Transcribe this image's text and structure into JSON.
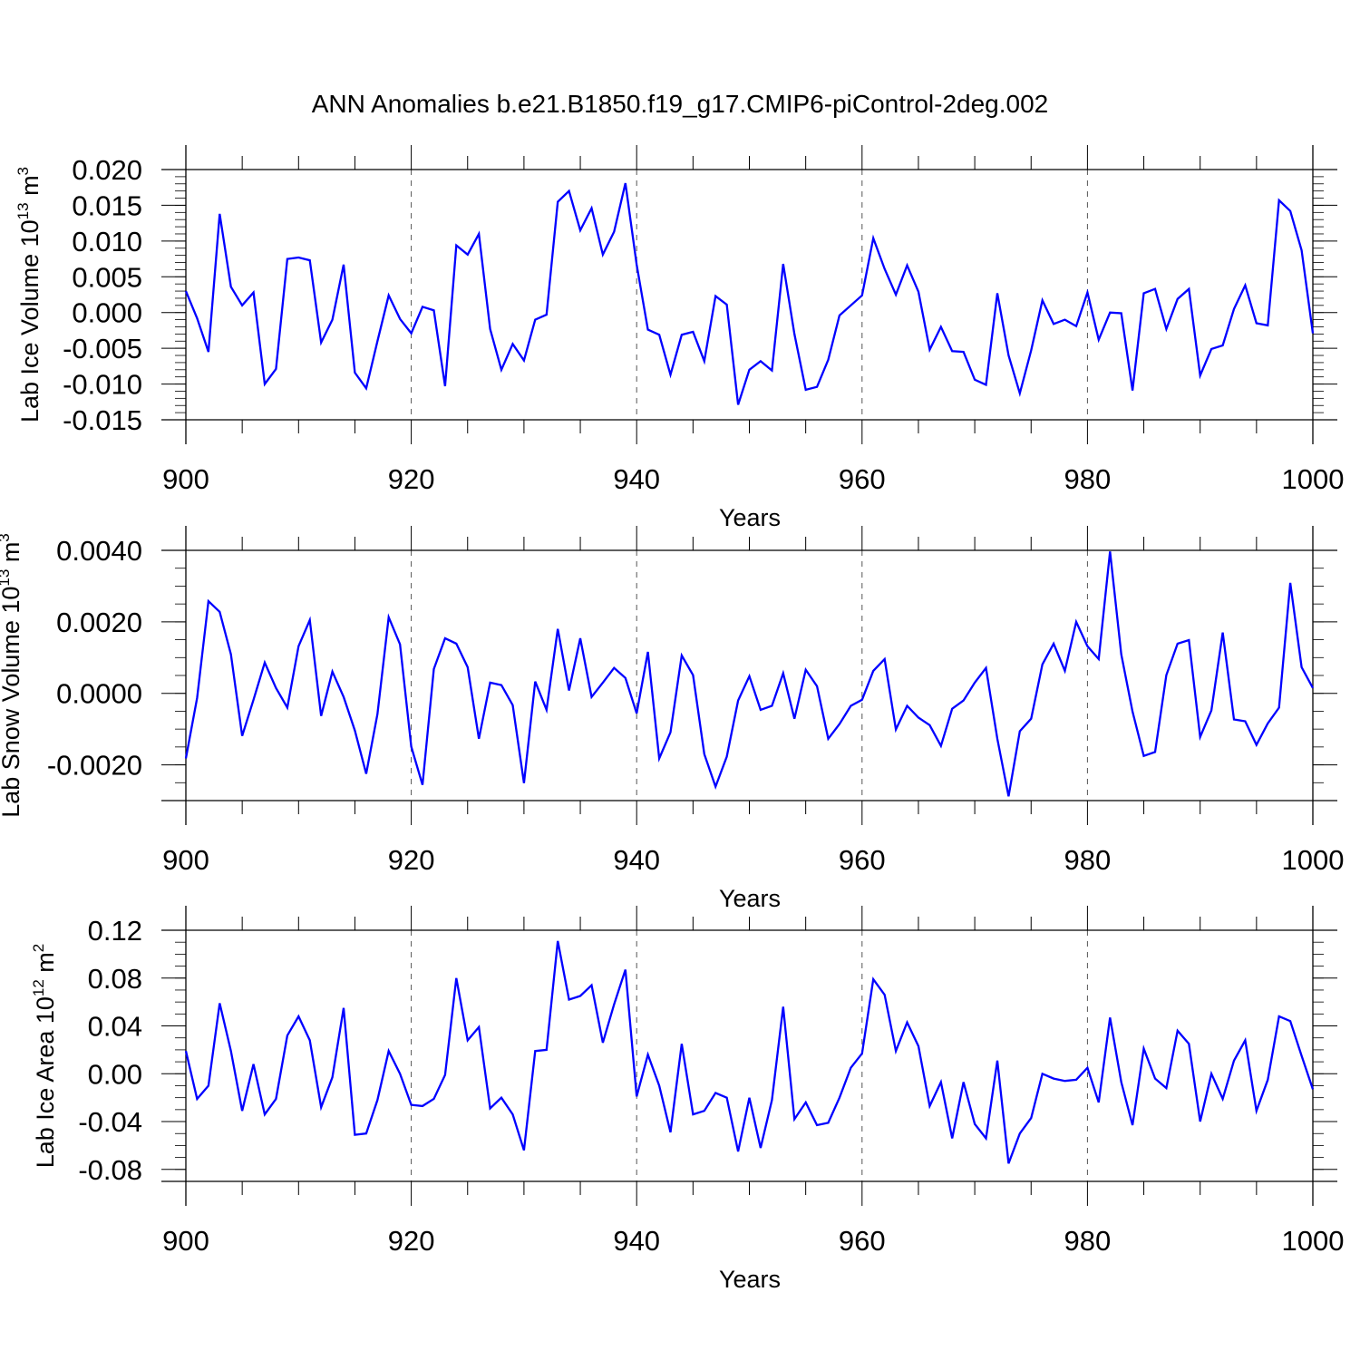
{
  "title": "ANN Anomalies b.e21.B1850.f19_g17.CMIP6-piControl-2deg.002",
  "colors": {
    "line": "#0000ff",
    "axis": "#000000",
    "grid": "#555555"
  },
  "chart_data": [
    {
      "type": "line",
      "xlabel": "Years",
      "ylabel": [
        {
          "t": "Lab Ice Volume 10"
        },
        {
          "t": "13",
          "sup": true
        },
        {
          "t": " m"
        },
        {
          "t": "3",
          "sup": true
        }
      ],
      "xlim": [
        900,
        1000
      ],
      "ylim": [
        -0.015,
        0.02
      ],
      "xticks": [
        "900",
        "920",
        "940",
        "960",
        "980",
        "1000"
      ],
      "yticks": [
        {
          "v": 0.02,
          "label": "0.020"
        },
        {
          "v": 0.015,
          "label": "0.015"
        },
        {
          "v": 0.01,
          "label": "0.010"
        },
        {
          "v": 0.005,
          "label": "0.005"
        },
        {
          "v": 0.0,
          "label": "0.000"
        },
        {
          "v": -0.005,
          "label": "-0.005"
        },
        {
          "v": -0.01,
          "label": "-0.010"
        },
        {
          "v": -0.015,
          "label": "-0.015"
        }
      ],
      "yminor_step": 0.001,
      "grid": "dashed vertical at 920, 940, 960, 980",
      "x_start": 900,
      "values": [
        0.003,
        -0.0008,
        -0.0055,
        0.0138,
        0.0036,
        0.001,
        0.0028,
        -0.01,
        -0.0079,
        0.0075,
        0.0077,
        0.0073,
        -0.0042,
        -0.001,
        0.0067,
        -0.0084,
        -0.0106,
        -0.004,
        0.0024,
        -0.0009,
        -0.0029,
        0.0008,
        0.0003,
        -0.0103,
        0.0094,
        0.0081,
        0.011,
        -0.0023,
        -0.008,
        -0.0044,
        -0.0067,
        -0.001,
        -0.0003,
        0.0155,
        0.017,
        0.0115,
        0.0146,
        0.0081,
        0.0113,
        0.0181,
        0.0067,
        -0.0024,
        -0.0031,
        -0.0087,
        -0.0031,
        -0.0027,
        -0.0068,
        0.0023,
        0.0011,
        -0.0129,
        -0.008,
        -0.0068,
        -0.0081,
        0.0068,
        -0.003,
        -0.0108,
        -0.0104,
        -0.0066,
        -0.0004,
        0.001,
        0.0024,
        0.0104,
        0.0061,
        0.0025,
        0.0066,
        0.0029,
        -0.0052,
        -0.002,
        -0.0054,
        -0.0055,
        -0.0094,
        -0.0101,
        0.0027,
        -0.006,
        -0.0113,
        -0.0053,
        0.0017,
        -0.0016,
        -0.001,
        -0.0019,
        0.0028,
        -0.0038,
        0.0,
        -0.0001,
        -0.0109,
        0.0027,
        0.0033,
        -0.0023,
        0.0019,
        0.0033,
        -0.0088,
        -0.0051,
        -0.0046,
        0.0005,
        0.0038,
        -0.0015,
        -0.0018,
        0.0157,
        0.0142,
        0.0087,
        -0.0029
      ]
    },
    {
      "type": "line",
      "xlabel": "Years",
      "ylabel": [
        {
          "t": "Lab Snow Volume 10"
        },
        {
          "t": "13",
          "sup": true
        },
        {
          "t": " m"
        },
        {
          "t": "3",
          "sup": true
        }
      ],
      "xlim": [
        900,
        1000
      ],
      "ylim": [
        -0.003,
        0.004
      ],
      "xticks": [
        "900",
        "920",
        "940",
        "960",
        "980",
        "1000"
      ],
      "yticks": [
        {
          "v": 0.004,
          "label": "0.0040"
        },
        {
          "v": 0.002,
          "label": "0.0020"
        },
        {
          "v": 0.0,
          "label": "0.0000"
        },
        {
          "v": -0.002,
          "label": "-0.0020"
        }
      ],
      "yminor_step": 0.0005,
      "grid": "dashed vertical at 920, 940, 960, 980",
      "x_start": 900,
      "values": [
        -0.00182,
        -0.00013,
        0.00258,
        0.00228,
        0.00109,
        -0.00119,
        -0.00018,
        0.00086,
        0.00015,
        -0.0004,
        0.00132,
        0.00205,
        -0.00063,
        0.00061,
        -0.0001,
        -0.00104,
        -0.00225,
        -0.00058,
        0.00213,
        0.00137,
        -0.00149,
        -0.00256,
        0.00068,
        0.00154,
        0.00139,
        0.00073,
        -0.00127,
        0.0003,
        0.00023,
        -0.00033,
        -0.00251,
        0.00033,
        -0.00046,
        0.0018,
        8e-05,
        0.00154,
        -0.0001,
        0.0003,
        0.00071,
        0.00043,
        -0.00056,
        0.00116,
        -0.00182,
        -0.00109,
        0.00106,
        0.00051,
        -0.0017,
        -0.00261,
        -0.00177,
        -0.0002,
        0.00048,
        -0.00046,
        -0.00035,
        0.00056,
        -0.00071,
        0.00066,
        0.0002,
        -0.00127,
        -0.00086,
        -0.00035,
        -0.00018,
        0.00063,
        0.00096,
        -0.00101,
        -0.00035,
        -0.00068,
        -0.00089,
        -0.00147,
        -0.00043,
        -0.0002,
        0.0003,
        0.00071,
        -0.00127,
        -0.00288,
        -0.00106,
        -0.00071,
        0.00081,
        0.00139,
        0.00063,
        0.002,
        0.00132,
        0.00096,
        0.00397,
        0.00109,
        -0.00051,
        -0.00175,
        -0.00164,
        0.00051,
        0.00139,
        0.00149,
        -0.00122,
        -0.00048,
        0.0017,
        -0.00073,
        -0.00078,
        -0.00144,
        -0.00084,
        -0.0004,
        0.00309,
        0.00073,
        0.00015
      ]
    },
    {
      "type": "line",
      "xlabel": "Years",
      "ylabel": [
        {
          "t": "Lab Ice Area 10"
        },
        {
          "t": "12",
          "sup": true
        },
        {
          "t": " m"
        },
        {
          "t": "2",
          "sup": true
        }
      ],
      "xlim": [
        900,
        1000
      ],
      "ylim": [
        -0.09,
        0.12
      ],
      "xticks": [
        "900",
        "920",
        "940",
        "960",
        "980",
        "1000"
      ],
      "yticks": [
        {
          "v": 0.12,
          "label": "0.12"
        },
        {
          "v": 0.08,
          "label": "0.08"
        },
        {
          "v": 0.04,
          "label": "0.04"
        },
        {
          "v": 0.0,
          "label": "0.00"
        },
        {
          "v": -0.04,
          "label": "-0.04"
        },
        {
          "v": -0.08,
          "label": "-0.08"
        }
      ],
      "yminor_step": 0.01,
      "grid": "dashed vertical at 920, 940, 960, 980",
      "x_start": 900,
      "values": [
        0.019,
        -0.021,
        -0.01,
        0.059,
        0.019,
        -0.031,
        0.008,
        -0.034,
        -0.021,
        0.032,
        0.048,
        0.028,
        -0.028,
        -0.003,
        0.055,
        -0.051,
        -0.05,
        -0.022,
        0.019,
        0.0,
        -0.026,
        -0.027,
        -0.021,
        -0.001,
        0.08,
        0.028,
        0.039,
        -0.029,
        -0.02,
        -0.034,
        -0.064,
        0.019,
        0.02,
        0.111,
        0.062,
        0.065,
        0.074,
        0.026,
        0.058,
        0.087,
        -0.019,
        0.016,
        -0.01,
        -0.049,
        0.025,
        -0.034,
        -0.031,
        -0.016,
        -0.02,
        -0.065,
        -0.02,
        -0.062,
        -0.022,
        0.056,
        -0.038,
        -0.024,
        -0.043,
        -0.041,
        -0.02,
        0.005,
        0.017,
        0.079,
        0.066,
        0.019,
        0.043,
        0.023,
        -0.027,
        -0.007,
        -0.054,
        -0.007,
        -0.042,
        -0.054,
        0.011,
        -0.075,
        -0.05,
        -0.037,
        0.0,
        -0.004,
        -0.006,
        -0.005,
        0.005,
        -0.024,
        0.047,
        -0.007,
        -0.043,
        0.021,
        -0.004,
        -0.012,
        0.036,
        0.025,
        -0.04,
        0.0,
        -0.021,
        0.011,
        0.028,
        -0.031,
        -0.005,
        0.048,
        0.044,
        0.015,
        -0.013
      ]
    }
  ]
}
